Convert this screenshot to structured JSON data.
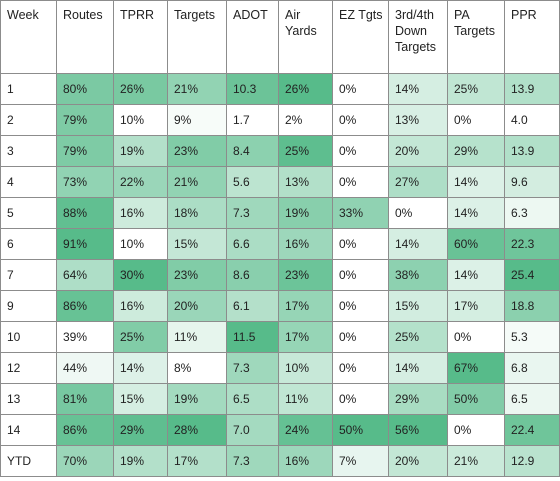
{
  "table": {
    "headers": [
      "Week",
      "Routes",
      "TPRR",
      "Targets",
      "ADOT",
      "Air Yards",
      "EZ Tgts",
      "3rd/4th Down Targets",
      "PA Targets",
      "PPR"
    ],
    "rows": [
      [
        "1",
        "80%",
        "26%",
        "21%",
        "10.3",
        "26%",
        "0%",
        "14%",
        "25%",
        "13.9"
      ],
      [
        "2",
        "79%",
        "10%",
        "9%",
        "1.7",
        "2%",
        "0%",
        "13%",
        "0%",
        "4.0"
      ],
      [
        "3",
        "79%",
        "19%",
        "23%",
        "8.4",
        "25%",
        "0%",
        "20%",
        "29%",
        "13.9"
      ],
      [
        "4",
        "73%",
        "22%",
        "21%",
        "5.6",
        "13%",
        "0%",
        "27%",
        "14%",
        "9.6"
      ],
      [
        "5",
        "88%",
        "16%",
        "18%",
        "7.3",
        "19%",
        "33%",
        "0%",
        "14%",
        "6.3"
      ],
      [
        "6",
        "91%",
        "10%",
        "15%",
        "6.6",
        "16%",
        "0%",
        "14%",
        "60%",
        "22.3"
      ],
      [
        "7",
        "64%",
        "30%",
        "23%",
        "8.6",
        "23%",
        "0%",
        "38%",
        "14%",
        "25.4"
      ],
      [
        "9",
        "86%",
        "16%",
        "20%",
        "6.1",
        "17%",
        "0%",
        "15%",
        "17%",
        "18.8"
      ],
      [
        "10",
        "39%",
        "25%",
        "11%",
        "11.5",
        "17%",
        "0%",
        "25%",
        "0%",
        "5.3"
      ],
      [
        "12",
        "44%",
        "14%",
        "8%",
        "7.3",
        "10%",
        "0%",
        "14%",
        "67%",
        "6.8"
      ],
      [
        "13",
        "81%",
        "15%",
        "19%",
        "6.5",
        "11%",
        "0%",
        "29%",
        "50%",
        "6.5"
      ],
      [
        "14",
        "86%",
        "29%",
        "28%",
        "7.0",
        "24%",
        "50%",
        "56%",
        "0%",
        "22.4"
      ],
      [
        "YTD",
        "70%",
        "19%",
        "17%",
        "7.3",
        "16%",
        "7%",
        "20%",
        "21%",
        "12.9"
      ]
    ],
    "heat_colors": {
      "high": "#57bb8a",
      "low": "#ffffff"
    }
  }
}
